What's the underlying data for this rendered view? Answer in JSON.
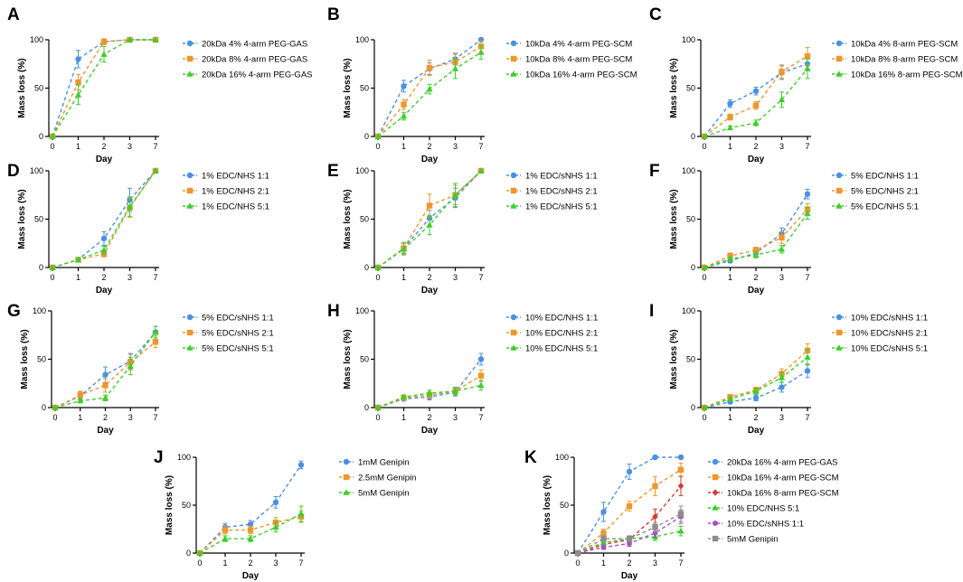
{
  "colors": {
    "blue": "#4a90e2",
    "orange": "#f0962d",
    "green": "#3ccf28",
    "red": "#d63a2f",
    "purple": "#a64fc9",
    "gray": "#8c8c8c",
    "axis": "#000000"
  },
  "chart_data": [
    {
      "panel": "A",
      "type": "line",
      "categories": [
        "0",
        "1",
        "2",
        "3",
        "7"
      ],
      "ylabel": "Mass loss (%)",
      "xlabel": "Day",
      "ylim": [
        0,
        100
      ],
      "yticks": [
        "0",
        "50",
        "100"
      ],
      "series": [
        {
          "name": "20kDa 4% 4-arm PEG-GAS",
          "color": "blue",
          "marker": "circle",
          "values": [
            0,
            80,
            98,
            100,
            100
          ],
          "errors": [
            0,
            9,
            3,
            0,
            0
          ]
        },
        {
          "name": "20kDa 8% 4-arm PEG-GAS",
          "color": "orange",
          "marker": "square",
          "values": [
            0,
            56,
            98,
            100,
            100
          ],
          "errors": [
            0,
            8,
            3,
            0,
            0
          ]
        },
        {
          "name": "20kDa 16% 4-arm PEG-GAS",
          "color": "green",
          "marker": "triangle",
          "values": [
            0,
            43,
            85,
            100,
            100
          ],
          "errors": [
            0,
            10,
            8,
            0,
            0
          ]
        }
      ]
    },
    {
      "panel": "B",
      "type": "line",
      "categories": [
        "0",
        "1",
        "2",
        "3",
        "7"
      ],
      "ylabel": "Mass loss (%)",
      "xlabel": "Day",
      "ylim": [
        0,
        100
      ],
      "yticks": [
        "0",
        "50",
        "100"
      ],
      "series": [
        {
          "name": "10kDa 4% 4-arm PEG-SCM",
          "color": "blue",
          "marker": "circle",
          "values": [
            0,
            52,
            70,
            80,
            100
          ],
          "errors": [
            0,
            6,
            6,
            6,
            0
          ]
        },
        {
          "name": "10kDa 8% 4-arm PEG-SCM",
          "color": "orange",
          "marker": "square",
          "values": [
            0,
            33,
            71,
            77,
            93
          ],
          "errors": [
            0,
            5,
            8,
            8,
            6
          ]
        },
        {
          "name": "10kDa 16% 4-arm PEG-SCM",
          "color": "green",
          "marker": "triangle",
          "values": [
            0,
            21,
            49,
            70,
            87
          ],
          "errors": [
            0,
            4,
            5,
            10,
            7
          ]
        }
      ]
    },
    {
      "panel": "C",
      "type": "line",
      "categories": [
        "0",
        "1",
        "2",
        "3",
        "7"
      ],
      "ylabel": "Mass loss (%)",
      "xlabel": "Day",
      "ylim": [
        0,
        100
      ],
      "yticks": [
        "0",
        "50",
        "100"
      ],
      "series": [
        {
          "name": "10kDa 4% 8-arm PEG-SCM",
          "color": "blue",
          "marker": "circle",
          "values": [
            0,
            34,
            47,
            66,
            75
          ],
          "errors": [
            0,
            4,
            4,
            7,
            5
          ]
        },
        {
          "name": "10kDa 8% 8-arm PEG-SCM",
          "color": "orange",
          "marker": "square",
          "values": [
            0,
            20,
            32,
            67,
            83
          ],
          "errors": [
            0,
            3,
            4,
            7,
            9
          ]
        },
        {
          "name": "10kDa 16% 8-arm PEG-SCM",
          "color": "green",
          "marker": "triangle",
          "values": [
            0,
            9,
            14,
            38,
            70
          ],
          "errors": [
            0,
            2,
            3,
            8,
            10
          ]
        }
      ]
    },
    {
      "panel": "D",
      "type": "line",
      "categories": [
        "0",
        "1",
        "2",
        "3",
        "7"
      ],
      "ylabel": "Mass loss (%)",
      "xlabel": "Day",
      "ylim": [
        0,
        100
      ],
      "yticks": [
        "0",
        "50",
        "100"
      ],
      "series": [
        {
          "name": "1% EDC/NHS 1:1",
          "color": "blue",
          "marker": "circle",
          "values": [
            0,
            8,
            30,
            70,
            100
          ],
          "errors": [
            0,
            2,
            7,
            12,
            0
          ]
        },
        {
          "name": "1% EDC/NHS 2:1",
          "color": "orange",
          "marker": "square",
          "values": [
            0,
            8,
            14,
            62,
            100
          ],
          "errors": [
            0,
            2,
            3,
            10,
            0
          ]
        },
        {
          "name": "1% EDC/NHS 5:1",
          "color": "green",
          "marker": "triangle",
          "values": [
            0,
            8,
            18,
            63,
            100
          ],
          "errors": [
            0,
            2,
            4,
            10,
            0
          ]
        }
      ]
    },
    {
      "panel": "E",
      "type": "line",
      "categories": [
        "0",
        "1",
        "2",
        "3",
        "7"
      ],
      "ylabel": "Mass loss (%)",
      "xlabel": "Day",
      "ylim": [
        0,
        100
      ],
      "yticks": [
        "0",
        "50",
        "100"
      ],
      "series": [
        {
          "name": "1% EDC/sNHS 1:1",
          "color": "blue",
          "marker": "circle",
          "values": [
            0,
            20,
            51,
            72,
            100
          ],
          "errors": [
            0,
            5,
            8,
            10,
            0
          ]
        },
        {
          "name": "1% EDC/sNHS 2:1",
          "color": "orange",
          "marker": "square",
          "values": [
            0,
            20,
            64,
            75,
            100
          ],
          "errors": [
            0,
            6,
            12,
            10,
            0
          ]
        },
        {
          "name": "1% EDC/sNHS 5:1",
          "color": "green",
          "marker": "triangle",
          "values": [
            0,
            19,
            44,
            75,
            100
          ],
          "errors": [
            0,
            6,
            10,
            12,
            0
          ]
        }
      ]
    },
    {
      "panel": "F",
      "type": "line",
      "categories": [
        "0",
        "1",
        "2",
        "3",
        "7"
      ],
      "ylabel": "Mass loss (%)",
      "xlabel": "Day",
      "ylim": [
        0,
        100
      ],
      "yticks": [
        "0",
        "50",
        "100"
      ],
      "series": [
        {
          "name": "5% EDC/NHS 1:1",
          "color": "blue",
          "marker": "circle",
          "values": [
            0,
            7,
            15,
            35,
            76
          ],
          "errors": [
            0,
            2,
            3,
            6,
            5
          ]
        },
        {
          "name": "5% EDC/NHS 2:1",
          "color": "orange",
          "marker": "square",
          "values": [
            0,
            12,
            18,
            31,
            60
          ],
          "errors": [
            0,
            3,
            3,
            6,
            6
          ]
        },
        {
          "name": "5% EDC/NHS 5:1",
          "color": "green",
          "marker": "triangle",
          "values": [
            0,
            9,
            13,
            19,
            56
          ],
          "errors": [
            0,
            2,
            3,
            4,
            6
          ]
        }
      ]
    },
    {
      "panel": "G",
      "type": "line",
      "categories": [
        "0",
        "1",
        "2",
        "3",
        "7"
      ],
      "ylabel": "Mass loss (%)",
      "xlabel": "Day",
      "ylim": [
        0,
        100
      ],
      "yticks": [
        "0",
        "50",
        "100"
      ],
      "series": [
        {
          "name": "5% EDC/sNHS 1:1",
          "color": "blue",
          "marker": "circle",
          "values": [
            0,
            12,
            34,
            48,
            78
          ],
          "errors": [
            0,
            4,
            8,
            8,
            6
          ]
        },
        {
          "name": "5% EDC/sNHS 2:1",
          "color": "orange",
          "marker": "square",
          "values": [
            0,
            13,
            23,
            47,
            68
          ],
          "errors": [
            0,
            4,
            7,
            8,
            6
          ]
        },
        {
          "name": "5% EDC/sNHS 5:1",
          "color": "green",
          "marker": "triangle",
          "values": [
            0,
            7,
            10,
            43,
            78
          ],
          "errors": [
            0,
            2,
            3,
            9,
            6
          ]
        }
      ]
    },
    {
      "panel": "H",
      "type": "line",
      "categories": [
        "0",
        "1",
        "2",
        "3",
        "7"
      ],
      "ylabel": "Mass loss (%)",
      "xlabel": "Day",
      "ylim": [
        0,
        100
      ],
      "yticks": [
        "0",
        "50",
        "100"
      ],
      "series": [
        {
          "name": "10% EDC/NHS 1:1",
          "color": "blue",
          "marker": "circle",
          "values": [
            0,
            9,
            11,
            16,
            50
          ],
          "errors": [
            0,
            2,
            3,
            4,
            6
          ]
        },
        {
          "name": "10% EDC/NHS 2:1",
          "color": "orange",
          "marker": "square",
          "values": [
            0,
            10,
            13,
            17,
            33
          ],
          "errors": [
            0,
            2,
            3,
            4,
            6
          ]
        },
        {
          "name": "10% EDC/NHS 5:1",
          "color": "green",
          "marker": "triangle",
          "values": [
            0,
            11,
            15,
            17,
            23
          ],
          "errors": [
            0,
            2,
            3,
            4,
            5
          ]
        }
      ]
    },
    {
      "panel": "I",
      "type": "line",
      "categories": [
        "0",
        "1",
        "2",
        "3",
        "7"
      ],
      "ylabel": "Mass loss (%)",
      "xlabel": "Day",
      "ylim": [
        0,
        100
      ],
      "yticks": [
        "0",
        "50",
        "100"
      ],
      "series": [
        {
          "name": "10% EDC/sNHS 1:1",
          "color": "blue",
          "marker": "circle",
          "values": [
            0,
            6,
            10,
            21,
            38
          ],
          "errors": [
            0,
            2,
            3,
            5,
            7
          ]
        },
        {
          "name": "10% EDC/sNHS 2:1",
          "color": "orange",
          "marker": "square",
          "values": [
            0,
            11,
            18,
            35,
            59
          ],
          "errors": [
            0,
            2,
            3,
            5,
            7
          ]
        },
        {
          "name": "10% EDC/sNHS 5:1",
          "color": "green",
          "marker": "triangle",
          "values": [
            0,
            9,
            17,
            31,
            52
          ],
          "errors": [
            0,
            2,
            3,
            5,
            8
          ]
        }
      ]
    },
    {
      "panel": "J",
      "type": "line",
      "categories": [
        "0",
        "1",
        "2",
        "3",
        "7"
      ],
      "ylabel": "Mass loss (%)",
      "xlabel": "Day",
      "ylim": [
        0,
        100
      ],
      "yticks": [
        "0",
        "50",
        "100"
      ],
      "series": [
        {
          "name": "1mM Genipin",
          "color": "blue",
          "marker": "circle",
          "values": [
            0,
            27,
            30,
            53,
            92
          ],
          "errors": [
            0,
            4,
            4,
            6,
            4
          ]
        },
        {
          "name": "2.5mM Genipin",
          "color": "orange",
          "marker": "square",
          "values": [
            0,
            24,
            24,
            32,
            38
          ],
          "errors": [
            0,
            4,
            4,
            5,
            6
          ]
        },
        {
          "name": "5mM Genipin",
          "color": "green",
          "marker": "triangle",
          "values": [
            0,
            15,
            15,
            27,
            41
          ],
          "errors": [
            0,
            3,
            3,
            5,
            8
          ]
        }
      ]
    },
    {
      "panel": "K",
      "type": "line",
      "categories": [
        "0",
        "1",
        "2",
        "3",
        "7"
      ],
      "ylabel": "Mass loss (%)",
      "xlabel": "Day",
      "ylim": [
        0,
        100
      ],
      "yticks": [
        "0",
        "50",
        "100"
      ],
      "series": [
        {
          "name": "20kDa 16% 4-arm PEG-GAS",
          "color": "blue",
          "marker": "circle",
          "values": [
            0,
            43,
            85,
            100,
            100
          ],
          "errors": [
            0,
            10,
            8,
            0,
            0
          ]
        },
        {
          "name": "10kDa 16% 4-arm PEG-SCM",
          "color": "orange",
          "marker": "square",
          "values": [
            0,
            21,
            49,
            70,
            87
          ],
          "errors": [
            0,
            4,
            5,
            10,
            7
          ]
        },
        {
          "name": "10kDa 16% 8-arm PEG-SCM",
          "color": "red",
          "marker": "diamond",
          "values": [
            0,
            9,
            14,
            38,
            70
          ],
          "errors": [
            0,
            2,
            3,
            8,
            10
          ]
        },
        {
          "name": "10% EDC/NHS 5:1",
          "color": "green",
          "marker": "triangle",
          "values": [
            0,
            11,
            15,
            17,
            23
          ],
          "errors": [
            0,
            2,
            3,
            4,
            5
          ]
        },
        {
          "name": "10% EDC/sNHS 1:1",
          "color": "purple",
          "marker": "hexagon",
          "values": [
            0,
            6,
            10,
            21,
            38
          ],
          "errors": [
            0,
            2,
            3,
            5,
            7
          ]
        },
        {
          "name": "5mM Genipin",
          "color": "gray",
          "marker": "square",
          "values": [
            0,
            15,
            15,
            27,
            41
          ],
          "errors": [
            0,
            3,
            3,
            5,
            8
          ]
        }
      ]
    }
  ]
}
